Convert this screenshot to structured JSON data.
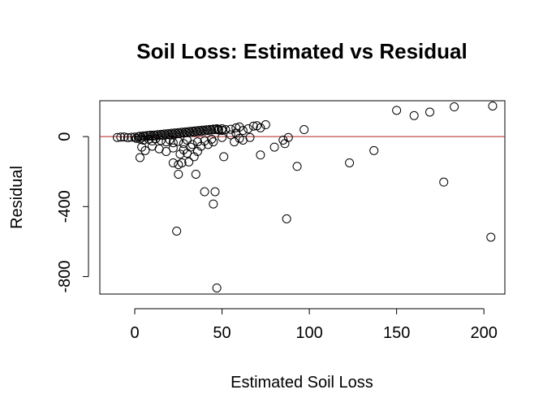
{
  "chart_data": {
    "type": "scatter",
    "title": "Soil Loss: Estimated vs Residual",
    "xlabel": "Estimated Soil Loss",
    "ylabel": "Residual",
    "xlim": [
      -20,
      212
    ],
    "ylim": [
      -900,
      205
    ],
    "xticks": [
      0,
      50,
      100,
      150,
      200
    ],
    "yticks": [
      0,
      -400,
      -800
    ],
    "reference_line": {
      "y": 0,
      "color": "#b22222"
    },
    "marker": "open-circle",
    "points": [
      {
        "x": -10,
        "y": -5
      },
      {
        "x": -8,
        "y": -3
      },
      {
        "x": -6,
        "y": -2
      },
      {
        "x": -4,
        "y": -6
      },
      {
        "x": -2,
        "y": -4
      },
      {
        "x": 0,
        "y": -3
      },
      {
        "x": 2,
        "y": -1
      },
      {
        "x": 4,
        "y": -5
      },
      {
        "x": 6,
        "y": 0
      },
      {
        "x": 8,
        "y": 3
      },
      {
        "x": 10,
        "y": 2
      },
      {
        "x": 12,
        "y": 5
      },
      {
        "x": 14,
        "y": 6
      },
      {
        "x": 16,
        "y": 8
      },
      {
        "x": 18,
        "y": 10
      },
      {
        "x": 20,
        "y": 12
      },
      {
        "x": 22,
        "y": 14
      },
      {
        "x": 24,
        "y": 16
      },
      {
        "x": 26,
        "y": 18
      },
      {
        "x": 28,
        "y": 20
      },
      {
        "x": 30,
        "y": 22
      },
      {
        "x": 32,
        "y": 24
      },
      {
        "x": 34,
        "y": 26
      },
      {
        "x": 36,
        "y": 28
      },
      {
        "x": 38,
        "y": 30
      },
      {
        "x": 40,
        "y": 32
      },
      {
        "x": 42,
        "y": 35
      },
      {
        "x": 44,
        "y": 38
      },
      {
        "x": 46,
        "y": 40
      },
      {
        "x": 48,
        "y": 42
      },
      {
        "x": 50,
        "y": 45
      },
      {
        "x": 3,
        "y": 2
      },
      {
        "x": 5,
        "y": 4
      },
      {
        "x": 7,
        "y": 6
      },
      {
        "x": 9,
        "y": 8
      },
      {
        "x": 11,
        "y": 9
      },
      {
        "x": 13,
        "y": 11
      },
      {
        "x": 15,
        "y": 13
      },
      {
        "x": 17,
        "y": 15
      },
      {
        "x": 19,
        "y": 17
      },
      {
        "x": 21,
        "y": 19
      },
      {
        "x": 23,
        "y": 21
      },
      {
        "x": 25,
        "y": 23
      },
      {
        "x": 27,
        "y": 25
      },
      {
        "x": 29,
        "y": 27
      },
      {
        "x": 31,
        "y": 29
      },
      {
        "x": 33,
        "y": 31
      },
      {
        "x": 35,
        "y": 33
      },
      {
        "x": 37,
        "y": 35
      },
      {
        "x": 39,
        "y": 37
      },
      {
        "x": 41,
        "y": 39
      },
      {
        "x": 43,
        "y": 41
      },
      {
        "x": 45,
        "y": 43
      },
      {
        "x": 47,
        "y": 45
      },
      {
        "x": 1,
        "y": -10
      },
      {
        "x": 3,
        "y": -14
      },
      {
        "x": 5,
        "y": -20
      },
      {
        "x": 8,
        "y": -15
      },
      {
        "x": 10,
        "y": -25
      },
      {
        "x": 12,
        "y": -12
      },
      {
        "x": 15,
        "y": -22
      },
      {
        "x": 18,
        "y": -30
      },
      {
        "x": 20,
        "y": -18
      },
      {
        "x": 22,
        "y": -35
      },
      {
        "x": 25,
        "y": -28
      },
      {
        "x": 28,
        "y": -40
      },
      {
        "x": 30,
        "y": -20
      },
      {
        "x": 33,
        "y": -45
      },
      {
        "x": 36,
        "y": -30
      },
      {
        "x": 40,
        "y": -25
      },
      {
        "x": 44,
        "y": -15
      },
      {
        "x": 50,
        "y": -5
      },
      {
        "x": 4,
        "y": -60
      },
      {
        "x": 6,
        "y": -80
      },
      {
        "x": 3,
        "y": -120
      },
      {
        "x": 10,
        "y": -55
      },
      {
        "x": 14,
        "y": -70
      },
      {
        "x": 18,
        "y": -85
      },
      {
        "x": 22,
        "y": -65
      },
      {
        "x": 26,
        "y": -100
      },
      {
        "x": 28,
        "y": -75
      },
      {
        "x": 30,
        "y": -95
      },
      {
        "x": 32,
        "y": -60
      },
      {
        "x": 34,
        "y": -115
      },
      {
        "x": 36,
        "y": -85
      },
      {
        "x": 38,
        "y": -55
      },
      {
        "x": 42,
        "y": -45
      },
      {
        "x": 45,
        "y": -30
      },
      {
        "x": 22,
        "y": -150
      },
      {
        "x": 25,
        "y": -160
      },
      {
        "x": 27,
        "y": -150
      },
      {
        "x": 31,
        "y": -145
      },
      {
        "x": 25,
        "y": -215
      },
      {
        "x": 35,
        "y": -215
      },
      {
        "x": 51,
        "y": -115
      },
      {
        "x": 40,
        "y": -315
      },
      {
        "x": 46,
        "y": -315
      },
      {
        "x": 45,
        "y": -385
      },
      {
        "x": 24,
        "y": -540
      },
      {
        "x": 47,
        "y": -865
      },
      {
        "x": 48,
        "y": 38
      },
      {
        "x": 50,
        "y": 35
      },
      {
        "x": 52,
        "y": 40
      },
      {
        "x": 55,
        "y": 42
      },
      {
        "x": 58,
        "y": 50
      },
      {
        "x": 60,
        "y": 55
      },
      {
        "x": 62,
        "y": 35
      },
      {
        "x": 65,
        "y": 45
      },
      {
        "x": 68,
        "y": 60
      },
      {
        "x": 70,
        "y": 62
      },
      {
        "x": 72,
        "y": 50
      },
      {
        "x": 75,
        "y": 68
      },
      {
        "x": 55,
        "y": 10
      },
      {
        "x": 58,
        "y": 20
      },
      {
        "x": 60,
        "y": -10
      },
      {
        "x": 57,
        "y": -30
      },
      {
        "x": 62,
        "y": -20
      },
      {
        "x": 66,
        "y": -5
      },
      {
        "x": 72,
        "y": -105
      },
      {
        "x": 80,
        "y": -60
      },
      {
        "x": 85,
        "y": -20
      },
      {
        "x": 86,
        "y": -40
      },
      {
        "x": 88,
        "y": -5
      },
      {
        "x": 93,
        "y": -170
      },
      {
        "x": 97,
        "y": 40
      },
      {
        "x": 87,
        "y": -470
      },
      {
        "x": 123,
        "y": -150
      },
      {
        "x": 137,
        "y": -80
      },
      {
        "x": 150,
        "y": 150
      },
      {
        "x": 160,
        "y": 120
      },
      {
        "x": 169,
        "y": 140
      },
      {
        "x": 183,
        "y": 170
      },
      {
        "x": 205,
        "y": 175
      },
      {
        "x": 177,
        "y": -260
      },
      {
        "x": 204,
        "y": -575
      }
    ]
  }
}
